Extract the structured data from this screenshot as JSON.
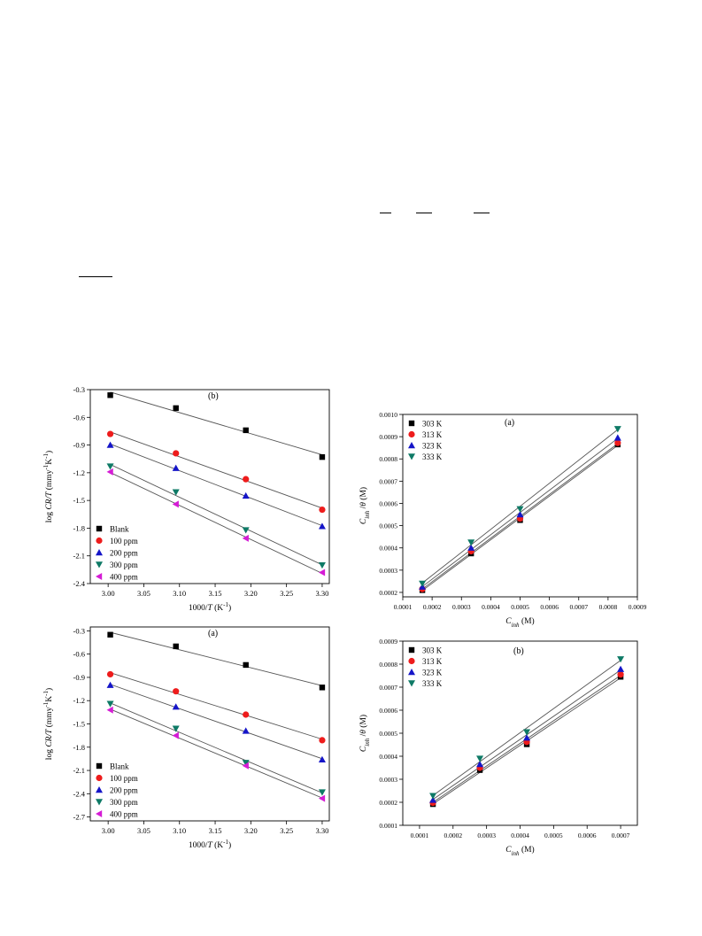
{
  "chart_data": [
    {
      "id": "b-left",
      "type": "scatter",
      "panel_label": "(b)",
      "xlabel_parts": [
        "1000/",
        "T",
        " (K",
        "-1",
        ")"
      ],
      "ylabel_parts": [
        "log ",
        "CR/T",
        " (mmy",
        "-1",
        "K",
        "-1",
        ")"
      ],
      "xlim": [
        2.975,
        3.31
      ],
      "ylim": [
        -2.4,
        -0.3
      ],
      "xticks": [
        3.0,
        3.05,
        3.1,
        3.15,
        3.2,
        3.25,
        3.3
      ],
      "xtick_labels": [
        "3.00",
        "3.05",
        "3.10",
        "3.15",
        "3.20",
        "3.25",
        "3.30"
      ],
      "yticks": [
        -0.3,
        -0.6,
        -0.9,
        -1.2,
        -1.5,
        -1.8,
        -2.1,
        -2.4
      ],
      "ytick_labels": [
        "-0.3",
        "-0.6",
        "-0.9",
        "-1.2",
        "-1.5",
        "-1.8",
        "-2.1",
        "-2.4"
      ],
      "legend_position": "bottom-left",
      "x": [
        3.003,
        3.095,
        3.193,
        3.3
      ],
      "series": [
        {
          "name": "Blank",
          "marker": "square",
          "color": "#000000",
          "values": [
            -0.36,
            -0.5,
            -0.74,
            -1.03
          ]
        },
        {
          "name": "100 ppm",
          "marker": "circle",
          "color": "#ee1c1c",
          "values": [
            -0.78,
            -0.99,
            -1.27,
            -1.6
          ]
        },
        {
          "name": "200 ppm",
          "marker": "triangle-up",
          "color": "#1515c8",
          "values": [
            -0.9,
            -1.15,
            -1.45,
            -1.78
          ]
        },
        {
          "name": "300 ppm",
          "marker": "triangle-down",
          "color": "#0e7a66",
          "values": [
            -1.13,
            -1.41,
            -1.82,
            -2.2
          ]
        },
        {
          "name": "400 ppm",
          "marker": "triangle-left",
          "color": "#d51cd5",
          "values": [
            -1.19,
            -1.54,
            -1.91,
            -2.28
          ]
        }
      ]
    },
    {
      "id": "a-right",
      "type": "scatter",
      "panel_label": "(a)",
      "xlabel_parts": [
        "C",
        "inh",
        " (M)"
      ],
      "ylabel_parts": [
        "C",
        "inh",
        " /",
        "θ",
        " (M)"
      ],
      "xlim": [
        0.0001,
        0.0009
      ],
      "ylim": [
        0.00018,
        0.001
      ],
      "xticks": [
        0.0001,
        0.0002,
        0.0003,
        0.0004,
        0.0005,
        0.0006,
        0.0007,
        0.0008,
        0.0009
      ],
      "xtick_labels": [
        "0.0001",
        "0.0002",
        "0.0003",
        "0.0004",
        "0.0005",
        "0.0006",
        "0.0007",
        "0.0008",
        "0.0009"
      ],
      "yticks": [
        0.0002,
        0.0003,
        0.0004,
        0.0005,
        0.0006,
        0.0007,
        0.0008,
        0.0009,
        0.001
      ],
      "ytick_labels": [
        "0.0002",
        "0.0003",
        "0.0004",
        "0.0005",
        "0.0006",
        "0.0007",
        "0.0008",
        "0.0009",
        "0.0010"
      ],
      "legend_position": "top-left",
      "x": [
        0.0001667,
        0.000333,
        0.0005,
        0.000833
      ],
      "series": [
        {
          "name": "303 K",
          "marker": "square",
          "color": "#000000",
          "values": [
            0.00021,
            0.000375,
            0.000525,
            0.000865
          ]
        },
        {
          "name": "313 K",
          "marker": "circle",
          "color": "#ee1c1c",
          "values": [
            0.000215,
            0.000385,
            0.000532,
            0.000872
          ]
        },
        {
          "name": "323 K",
          "marker": "triangle-up",
          "color": "#1515c8",
          "values": [
            0.000225,
            0.0004,
            0.00055,
            0.000895
          ]
        },
        {
          "name": "333 K",
          "marker": "triangle-down",
          "color": "#0e7a66",
          "values": [
            0.00024,
            0.000425,
            0.000575,
            0.000935
          ]
        }
      ]
    },
    {
      "id": "a-left",
      "type": "scatter",
      "panel_label": "(a)",
      "xlabel_parts": [
        "1000/",
        "T",
        " (K",
        "-1",
        ")"
      ],
      "ylabel_parts": [
        "log ",
        "CR/T",
        " (mmy",
        "-1",
        "K",
        "-1",
        ")"
      ],
      "xlim": [
        2.975,
        3.31
      ],
      "ylim": [
        -2.75,
        -0.25
      ],
      "xticks": [
        3.0,
        3.05,
        3.1,
        3.15,
        3.2,
        3.25,
        3.3
      ],
      "xtick_labels": [
        "3.00",
        "3.05",
        "3.10",
        "3.15",
        "3.20",
        "3.25",
        "3.30"
      ],
      "yticks": [
        -0.3,
        -0.6,
        -0.9,
        -1.2,
        -1.5,
        -1.8,
        -2.1,
        -2.4,
        -2.7
      ],
      "ytick_labels": [
        "-0.3",
        "-0.6",
        "-0.9",
        "-1.2",
        "-1.5",
        "-1.8",
        "-2.1",
        "-2.4",
        "-2.7"
      ],
      "legend_position": "bottom-left",
      "x": [
        3.003,
        3.095,
        3.193,
        3.3
      ],
      "series": [
        {
          "name": "Blank",
          "marker": "square",
          "color": "#000000",
          "values": [
            -0.35,
            -0.5,
            -0.74,
            -1.03
          ]
        },
        {
          "name": "100 ppm",
          "marker": "circle",
          "color": "#ee1c1c",
          "values": [
            -0.86,
            -1.08,
            -1.38,
            -1.71
          ]
        },
        {
          "name": "200 ppm",
          "marker": "triangle-up",
          "color": "#1515c8",
          "values": [
            -1.0,
            -1.28,
            -1.59,
            -1.96
          ]
        },
        {
          "name": "300 ppm",
          "marker": "triangle-down",
          "color": "#0e7a66",
          "values": [
            -1.24,
            -1.56,
            -2.0,
            -2.38
          ]
        },
        {
          "name": "400 ppm",
          "marker": "triangle-left",
          "color": "#d51cd5",
          "values": [
            -1.32,
            -1.65,
            -2.04,
            -2.46
          ]
        }
      ]
    },
    {
      "id": "b-right",
      "type": "scatter",
      "panel_label": "(b)",
      "xlabel_parts": [
        "C",
        "inh",
        " (M)"
      ],
      "ylabel_parts": [
        "C",
        "inh",
        " /",
        "θ",
        " (M)"
      ],
      "xlim": [
        5e-05,
        0.00075
      ],
      "ylim": [
        0.0001,
        0.0009
      ],
      "xticks": [
        0.0001,
        0.0002,
        0.0003,
        0.0004,
        0.0005,
        0.0006,
        0.0007
      ],
      "xtick_labels": [
        "0.0001",
        "0.0002",
        "0.0003",
        "0.0004",
        "0.0005",
        "0.0006",
        "0.0007"
      ],
      "yticks": [
        0.0001,
        0.0002,
        0.0003,
        0.0004,
        0.0005,
        0.0006,
        0.0007,
        0.0008,
        0.0009
      ],
      "ytick_labels": [
        "0.0001",
        "0.0002",
        "0.0003",
        "0.0004",
        "0.0005",
        "0.0006",
        "0.0007",
        "0.0008",
        "0.0009"
      ],
      "legend_position": "top-left",
      "x": [
        0.00014,
        0.00028,
        0.00042,
        0.0007
      ],
      "series": [
        {
          "name": "303 K",
          "marker": "square",
          "color": "#000000",
          "values": [
            0.000192,
            0.00034,
            0.000452,
            0.000745
          ]
        },
        {
          "name": "313 K",
          "marker": "circle",
          "color": "#ee1c1c",
          "values": [
            0.000198,
            0.00035,
            0.000462,
            0.000755
          ]
        },
        {
          "name": "323 K",
          "marker": "triangle-up",
          "color": "#1515c8",
          "values": [
            0.00021,
            0.000365,
            0.00048,
            0.000778
          ]
        },
        {
          "name": "333 K",
          "marker": "triangle-down",
          "color": "#0e7a66",
          "values": [
            0.000228,
            0.00039,
            0.000505,
            0.000822
          ]
        }
      ]
    }
  ]
}
